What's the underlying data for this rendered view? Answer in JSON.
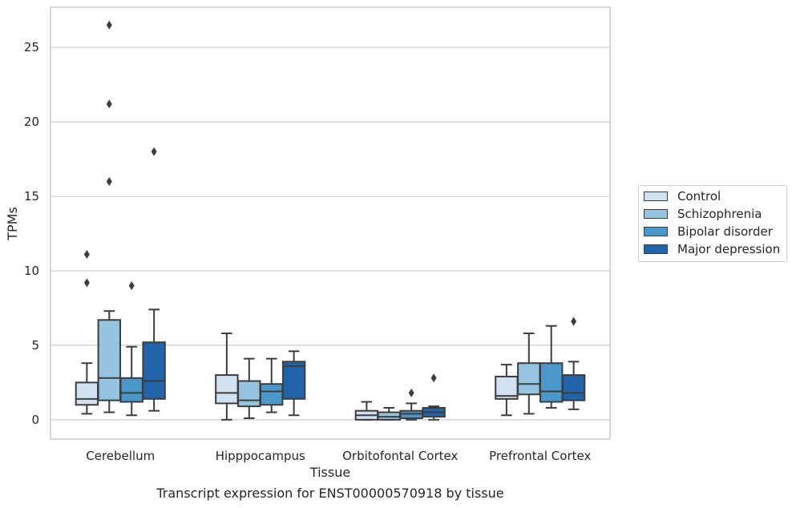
{
  "chart_data": {
    "type": "box",
    "title": "",
    "caption": "Transcript expression for ENST00000570918 by tissue",
    "xlabel": "Tissue",
    "ylabel": "TPMs",
    "ylim": [
      -1.3,
      27.7
    ],
    "yticks": [
      0,
      5,
      10,
      15,
      20,
      25
    ],
    "grid": "horizontal",
    "legend_position": "right",
    "categories": [
      "Cerebellum",
      "Hipppocampus",
      "Orbitofontal Cortex",
      "Prefrontal Cortex"
    ],
    "series": [
      {
        "name": "Control",
        "color": "#d0e1f2",
        "boxes": [
          {
            "whislo": 0.4,
            "q1": 1.0,
            "med": 1.4,
            "q3": 2.5,
            "whishi": 3.8,
            "fliers": [
              9.2,
              11.1
            ]
          },
          {
            "whislo": 0.0,
            "q1": 1.1,
            "med": 1.8,
            "q3": 3.0,
            "whishi": 5.8,
            "fliers": []
          },
          {
            "whislo": 0.0,
            "q1": 0.0,
            "med": 0.3,
            "q3": 0.6,
            "whishi": 1.2,
            "fliers": []
          },
          {
            "whislo": 0.3,
            "q1": 1.4,
            "med": 1.6,
            "q3": 2.9,
            "whishi": 3.7,
            "fliers": []
          }
        ]
      },
      {
        "name": "Schizophrenia",
        "color": "#94c4df",
        "boxes": [
          {
            "whislo": 0.5,
            "q1": 1.3,
            "med": 2.8,
            "q3": 6.7,
            "whishi": 7.3,
            "fliers": [
              26.5,
              21.2,
              16.0
            ]
          },
          {
            "whislo": 0.1,
            "q1": 0.9,
            "med": 1.3,
            "q3": 2.6,
            "whishi": 4.1,
            "fliers": []
          },
          {
            "whislo": 0.0,
            "q1": 0.0,
            "med": 0.2,
            "q3": 0.5,
            "whishi": 0.8,
            "fliers": []
          },
          {
            "whislo": 0.4,
            "q1": 1.7,
            "med": 2.4,
            "q3": 3.8,
            "whishi": 5.8,
            "fliers": []
          }
        ]
      },
      {
        "name": "Bipolar disorder",
        "color": "#4a98c9",
        "boxes": [
          {
            "whislo": 0.3,
            "q1": 1.2,
            "med": 1.8,
            "q3": 2.8,
            "whishi": 4.9,
            "fliers": [
              9.0
            ]
          },
          {
            "whislo": 0.5,
            "q1": 1.0,
            "med": 1.9,
            "q3": 2.4,
            "whishi": 4.1,
            "fliers": []
          },
          {
            "whislo": 0.0,
            "q1": 0.1,
            "med": 0.4,
            "q3": 0.6,
            "whishi": 1.1,
            "fliers": [
              1.8
            ]
          },
          {
            "whislo": 0.8,
            "q1": 1.2,
            "med": 1.9,
            "q3": 3.8,
            "whishi": 6.3,
            "fliers": []
          }
        ]
      },
      {
        "name": "Major depression",
        "color": "#2164ab",
        "boxes": [
          {
            "whislo": 0.6,
            "q1": 1.4,
            "med": 2.6,
            "q3": 5.2,
            "whishi": 7.4,
            "fliers": [
              18.0
            ]
          },
          {
            "whislo": 0.3,
            "q1": 1.4,
            "med": 3.6,
            "q3": 3.9,
            "whishi": 4.6,
            "fliers": []
          },
          {
            "whislo": 0.0,
            "q1": 0.2,
            "med": 0.5,
            "q3": 0.8,
            "whishi": 0.9,
            "fliers": [
              2.8
            ]
          },
          {
            "whislo": 0.7,
            "q1": 1.3,
            "med": 1.8,
            "q3": 3.0,
            "whishi": 3.9,
            "fliers": [
              6.6
            ]
          }
        ]
      }
    ]
  }
}
